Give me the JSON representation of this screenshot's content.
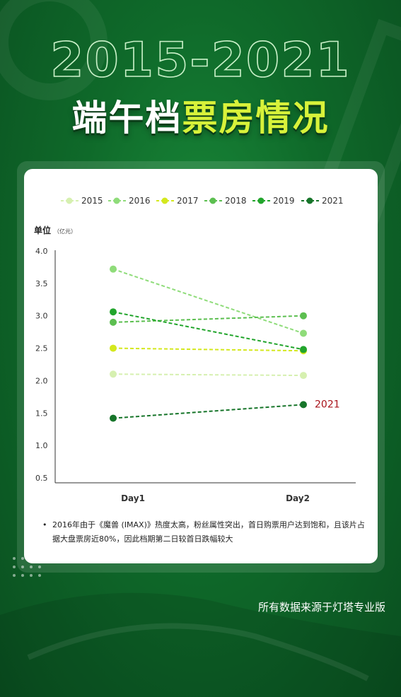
{
  "header": {
    "years": "2015-2021",
    "title_part1": "端午档",
    "title_part2": "票房情况"
  },
  "chart_data": {
    "type": "line",
    "ylabel": "单位",
    "yunit": "（亿元）",
    "categories": [
      "Day1",
      "Day2"
    ],
    "ylim": [
      0.5,
      4.0
    ],
    "yticks": [
      "4.0",
      "3.5",
      "3.0",
      "2.5",
      "2.0",
      "1.5",
      "1.0",
      "0.5"
    ],
    "series": [
      {
        "name": "2015",
        "values": [
          2.1,
          2.08
        ],
        "color": "#d6f0b0"
      },
      {
        "name": "2016",
        "values": [
          3.72,
          2.73
        ],
        "color": "#8fdc7a"
      },
      {
        "name": "2017",
        "values": [
          2.5,
          2.46
        ],
        "color": "#d4e81e"
      },
      {
        "name": "2018",
        "values": [
          2.9,
          3.0
        ],
        "color": "#5cbf50"
      },
      {
        "name": "2019",
        "values": [
          3.06,
          2.48
        ],
        "color": "#22a52c"
      },
      {
        "name": "2021",
        "values": [
          1.42,
          1.63
        ],
        "color": "#17752a"
      }
    ],
    "annotation": {
      "text": "2021",
      "series": "2021",
      "color": "#a8121a"
    },
    "legend_position": "top"
  },
  "note": {
    "bullet": "•",
    "text": "2016年由于《魔兽 (IMAX)》热度太高，粉丝属性突出，首日购票用户达到饱和，且该片占据大盘票房近80%，因此档期第二日较首日跌幅较大"
  },
  "source": "所有数据来源于灯塔专业版"
}
